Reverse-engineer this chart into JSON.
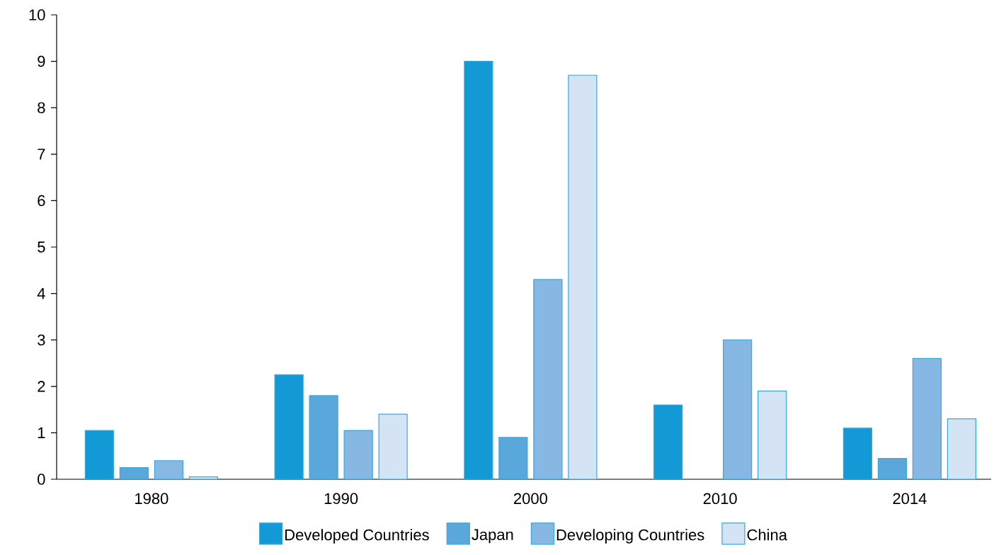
{
  "chart_data": {
    "type": "bar",
    "categories": [
      "1980",
      "1990",
      "2000",
      "2010",
      "2014"
    ],
    "series": [
      {
        "name": "Developed Countries",
        "color": "#1399d6",
        "values": [
          1.05,
          2.25,
          9.0,
          1.6,
          1.1
        ]
      },
      {
        "name": "Japan",
        "color": "#5aa7dc",
        "values": [
          0.25,
          1.8,
          0.9,
          null,
          0.45
        ]
      },
      {
        "name": "Developing Countries",
        "color": "#86b8e3",
        "values": [
          0.4,
          1.05,
          4.3,
          3.0,
          2.6
        ]
      },
      {
        "name": "China",
        "color": "#d5e4f5",
        "values": [
          0.05,
          1.4,
          8.7,
          1.9,
          1.3
        ]
      }
    ],
    "ylim": [
      0,
      10
    ],
    "yticks": [
      0,
      1,
      2,
      3,
      4,
      5,
      6,
      7,
      8,
      9,
      10
    ],
    "grid": false,
    "legend": "bottom"
  }
}
